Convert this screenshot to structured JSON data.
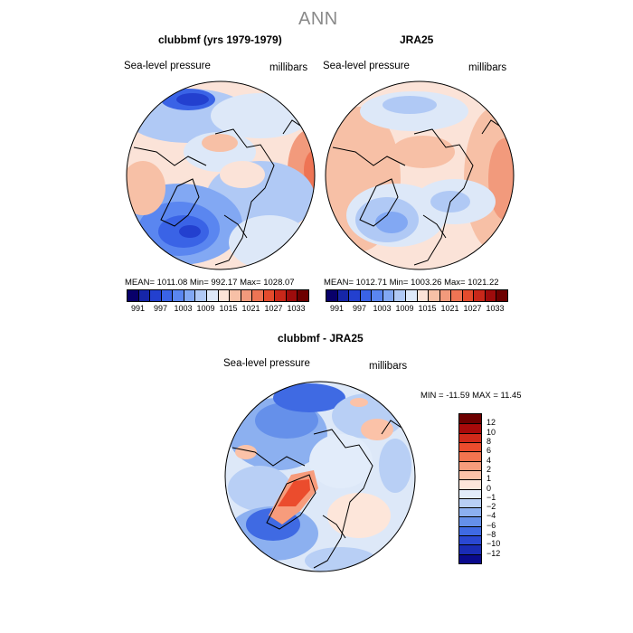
{
  "figure_title": "ANN",
  "panels": [
    {
      "title": "clubbmf (yrs 1979-1979)",
      "variable": "Sea-level pressure",
      "units": "millibars",
      "stats": "MEAN= 1011.08   Min= 992.17   Max= 1028.07"
    },
    {
      "title": "JRA25",
      "variable": "Sea-level pressure",
      "units": "millibars",
      "stats": "MEAN= 1012.71   Min= 1003.26   Max= 1021.22"
    },
    {
      "title": "clubbmf - JRA25",
      "variable": "Sea-level pressure",
      "units": "millibars",
      "stats": "MIN = -11.59 MAX =  11.45"
    }
  ],
  "abs_colorbar": {
    "colors": [
      "#08006a",
      "#1626a8",
      "#2340cf",
      "#3a63e6",
      "#5a86f0",
      "#82a8f3",
      "#b0c9f5",
      "#dde8f8",
      "#fbe3d8",
      "#f7c0a6",
      "#f29a7c",
      "#ee7454",
      "#e44b2d",
      "#c8281a",
      "#9e0c0c",
      "#6d0000"
    ],
    "labels": [
      "991",
      "997",
      "1003",
      "1009",
      "1015",
      "1021",
      "1027",
      "1033"
    ]
  },
  "diff_colorbar": {
    "colors": [
      "#6d0000",
      "#a80a0a",
      "#d02a1a",
      "#eb4c2d",
      "#f3744f",
      "#f79c7c",
      "#fbc2a8",
      "#fde6da",
      "#e2ecfa",
      "#b8cff5",
      "#8cb0f0",
      "#6590ea",
      "#3f6ae3",
      "#2a48d2",
      "#1a2cb5",
      "#0a0a8c"
    ],
    "labels": [
      "12",
      "10",
      "8",
      "6",
      "4",
      "2",
      "1",
      "0",
      "-1",
      "-2",
      "-4",
      "-6",
      "-8",
      "-10",
      "-12"
    ]
  },
  "icons": [
    "polar-map-icon"
  ],
  "chart_data": {
    "type": "polar-contour-map",
    "title": "ANN",
    "maps": [
      {
        "name": "clubbmf (yrs 1979-1979)",
        "field": "Sea-level pressure",
        "units": "millibars",
        "mean": 1011.08,
        "min": 992.17,
        "max": 1028.07
      },
      {
        "name": "JRA25",
        "field": "Sea-level pressure",
        "units": "millibars",
        "mean": 1012.71,
        "min": 1003.26,
        "max": 1021.22
      },
      {
        "name": "clubbmf - JRA25",
        "field": "Sea-level pressure",
        "units": "millibars",
        "min": -11.59,
        "max": 11.45
      }
    ],
    "levels_abs": [
      991,
      997,
      1003,
      1009,
      1015,
      1021,
      1027,
      1033
    ],
    "levels_diff": [
      12,
      10,
      8,
      6,
      4,
      2,
      1,
      0,
      -1,
      -2,
      -4,
      -6,
      -8,
      -10,
      -12
    ]
  }
}
